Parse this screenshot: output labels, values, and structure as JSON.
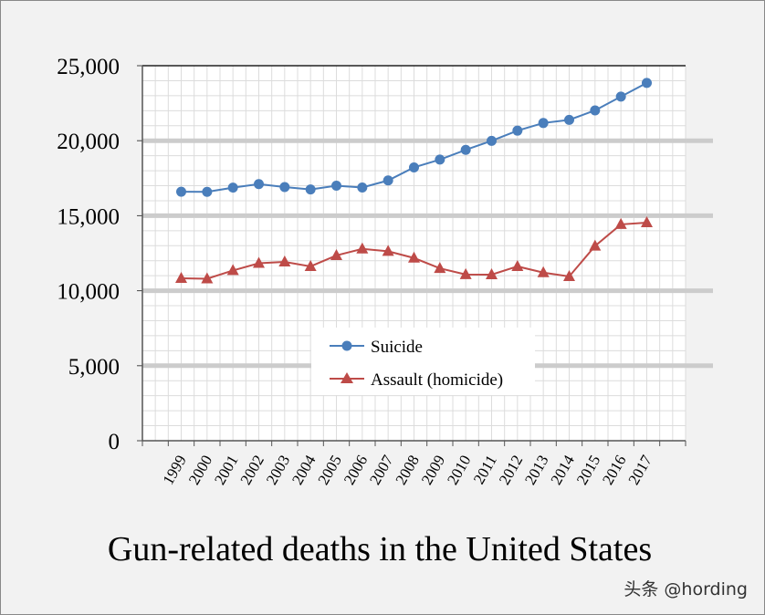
{
  "chart_data": {
    "type": "line",
    "title": "Gun-related deaths in the United States",
    "xlabel": "",
    "ylabel": "",
    "categories": [
      "1999",
      "2000",
      "2001",
      "2002",
      "2003",
      "2004",
      "2005",
      "2006",
      "2007",
      "2008",
      "2009",
      "2010",
      "2011",
      "2012",
      "2013",
      "2014",
      "2015",
      "2016",
      "2017"
    ],
    "ylim": [
      0,
      25000
    ],
    "yticks": [
      "0",
      "5,000",
      "10,000",
      "15,000",
      "20,000",
      "25,000"
    ],
    "ytick_values": [
      0,
      5000,
      10000,
      15000,
      20000,
      25000
    ],
    "grid": true,
    "legend_position": "center",
    "series": [
      {
        "name": "Suicide",
        "color": "#4a7ebb",
        "marker": "circle",
        "values": [
          16600,
          16590,
          16870,
          17110,
          16910,
          16750,
          17000,
          16880,
          17350,
          18220,
          18740,
          19390,
          19990,
          20670,
          21180,
          21390,
          22020,
          22940,
          23850
        ]
      },
      {
        "name": "Assault (homicide)",
        "color": "#be4b48",
        "marker": "triangle",
        "values": [
          10830,
          10800,
          11350,
          11830,
          11920,
          11620,
          12350,
          12790,
          12630,
          12180,
          11490,
          11080,
          11070,
          11620,
          11210,
          10950,
          12980,
          14420,
          14540
        ]
      }
    ]
  },
  "watermark": "头条 @hording"
}
